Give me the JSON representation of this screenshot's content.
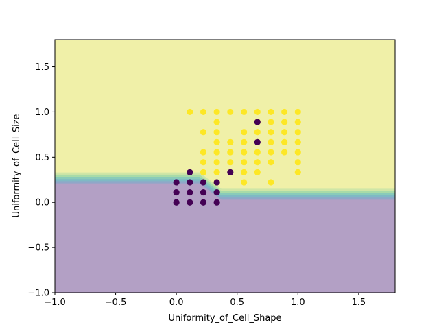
{
  "chart_data": {
    "type": "scatter",
    "title": "",
    "xlabel": "Uniformity_of_Cell_Shape",
    "ylabel": "Uniformity_of_Cell_Size",
    "xlim": [
      -1.0,
      1.8
    ],
    "ylim": [
      -1.0,
      1.8
    ],
    "xticks": [
      "−1.0",
      "−0.5",
      "0.0",
      "0.5",
      "1.0",
      "1.5"
    ],
    "xtick_values": [
      -1.0,
      -0.5,
      0.0,
      0.5,
      1.0,
      1.5
    ],
    "yticks": [
      "−1.0",
      "−0.5",
      "0.0",
      "0.5",
      "1.0",
      "1.5"
    ],
    "ytick_values": [
      -1.0,
      -0.5,
      0.0,
      0.5,
      1.0,
      1.5
    ],
    "grid": false,
    "region_colors": {
      "class_0": "#b3a0c5",
      "class_1": "#f0f0a8",
      "boundary": [
        "#8fa7c8",
        "#7fb9c4",
        "#89cbb9",
        "#a8dba8",
        "#cfe6a6"
      ]
    },
    "point_colors": {
      "class_0": "#440154",
      "class_1": "#fde725"
    },
    "boundary_curve": [
      [
        -1.0,
        0.27
      ],
      [
        0.19,
        0.27
      ],
      [
        0.37,
        0.09
      ],
      [
        1.8,
        0.09
      ]
    ],
    "points_class_0": [
      [
        0.0,
        0.0
      ],
      [
        0.0,
        0.111
      ],
      [
        0.0,
        0.222
      ],
      [
        0.111,
        0.0
      ],
      [
        0.111,
        0.111
      ],
      [
        0.111,
        0.222
      ],
      [
        0.111,
        0.333
      ],
      [
        0.222,
        0.0
      ],
      [
        0.222,
        0.111
      ],
      [
        0.222,
        0.222
      ],
      [
        0.333,
        0.0
      ],
      [
        0.333,
        0.111
      ],
      [
        0.333,
        0.222
      ],
      [
        0.444,
        0.333
      ],
      [
        0.667,
        0.667
      ],
      [
        0.667,
        0.889
      ]
    ],
    "points_class_1": [
      [
        0.111,
        1.0
      ],
      [
        0.222,
        1.0
      ],
      [
        0.333,
        1.0
      ],
      [
        0.444,
        1.0
      ],
      [
        0.556,
        1.0
      ],
      [
        0.667,
        1.0
      ],
      [
        0.778,
        1.0
      ],
      [
        0.889,
        1.0
      ],
      [
        1.0,
        1.0
      ],
      [
        0.333,
        0.889
      ],
      [
        0.667,
        0.889
      ],
      [
        0.778,
        0.889
      ],
      [
        0.889,
        0.889
      ],
      [
        1.0,
        0.889
      ],
      [
        0.222,
        0.778
      ],
      [
        0.333,
        0.778
      ],
      [
        0.556,
        0.778
      ],
      [
        0.667,
        0.778
      ],
      [
        0.778,
        0.778
      ],
      [
        0.889,
        0.778
      ],
      [
        1.0,
        0.778
      ],
      [
        0.333,
        0.667
      ],
      [
        0.444,
        0.667
      ],
      [
        0.556,
        0.667
      ],
      [
        0.778,
        0.667
      ],
      [
        0.889,
        0.667
      ],
      [
        1.0,
        0.667
      ],
      [
        0.222,
        0.556
      ],
      [
        0.333,
        0.556
      ],
      [
        0.444,
        0.556
      ],
      [
        0.556,
        0.556
      ],
      [
        0.667,
        0.556
      ],
      [
        0.778,
        0.556
      ],
      [
        0.889,
        0.556
      ],
      [
        1.0,
        0.556
      ],
      [
        0.222,
        0.444
      ],
      [
        0.333,
        0.444
      ],
      [
        0.444,
        0.444
      ],
      [
        0.556,
        0.444
      ],
      [
        0.667,
        0.444
      ],
      [
        0.778,
        0.444
      ],
      [
        1.0,
        0.444
      ],
      [
        0.222,
        0.333
      ],
      [
        0.333,
        0.333
      ],
      [
        0.556,
        0.333
      ],
      [
        0.667,
        0.333
      ],
      [
        1.0,
        0.333
      ],
      [
        0.333,
        0.222
      ],
      [
        0.556,
        0.222
      ],
      [
        0.778,
        0.222
      ]
    ]
  }
}
